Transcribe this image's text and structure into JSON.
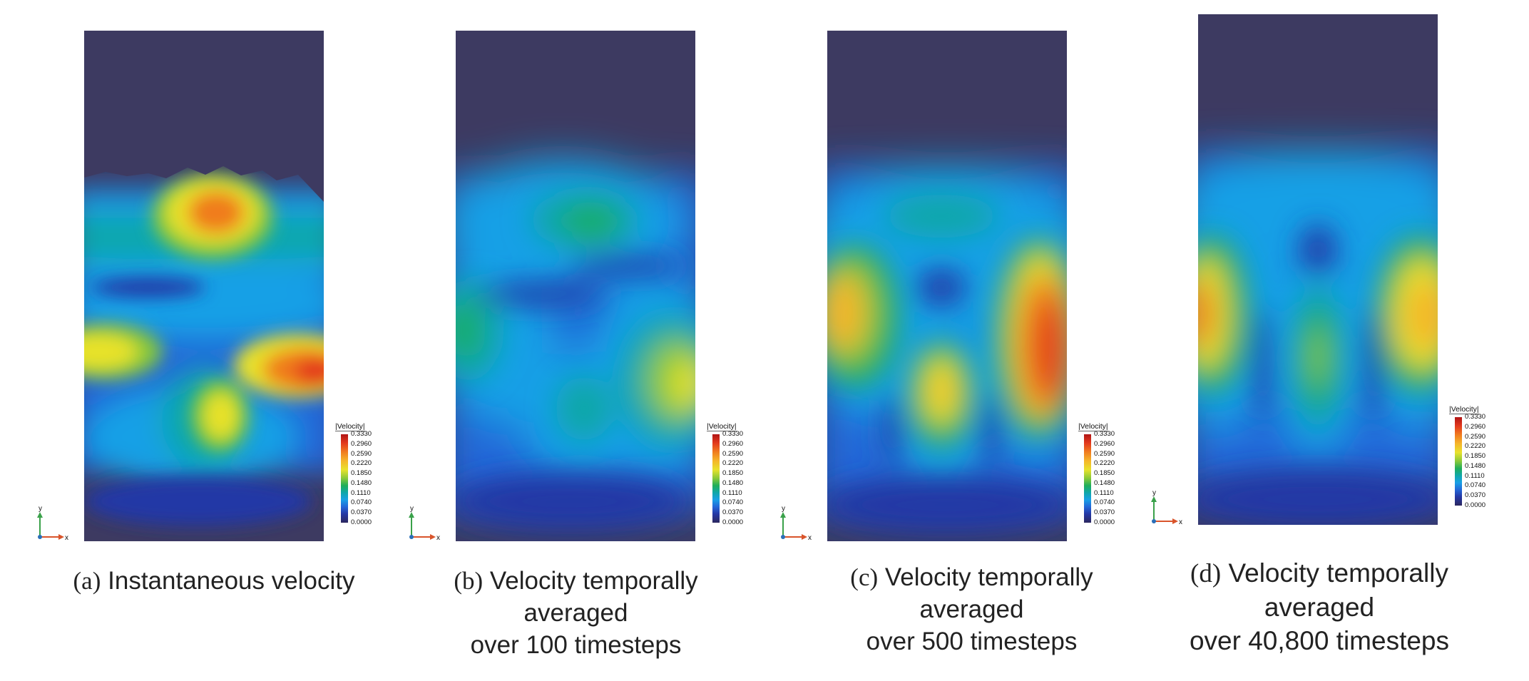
{
  "legend": {
    "title": "|Velocity|",
    "ticks": [
      "0.3330",
      "0.2960",
      "0.2590",
      "0.2220",
      "0.1850",
      "0.1480",
      "0.1110",
      "0.0740",
      "0.0370",
      "0.0000"
    ]
  },
  "axes": {
    "y": "y",
    "x": "x"
  },
  "panels": [
    {
      "letter": "(a)",
      "line1": "Instantaneous velocity",
      "line2": "",
      "line3": ""
    },
    {
      "letter": "(b)",
      "line1": "Velocity temporally",
      "line2": "averaged",
      "line3": "over 100 timesteps"
    },
    {
      "letter": "(c)",
      "line1": "Velocity temporally",
      "line2": "averaged",
      "line3": "over 500 timesteps"
    },
    {
      "letter": "(d)",
      "line1": "Velocity temporally",
      "line2": "averaged",
      "line3": "over 40,800 timesteps"
    }
  ],
  "colors": {
    "background_low": "#3d3a61",
    "scale": [
      "#2c275f",
      "#2438a6",
      "#2368d8",
      "#18a0e6",
      "#10a7a9",
      "#1fae5a",
      "#86c83a",
      "#e8e22c",
      "#f5b52a",
      "#f07c1f",
      "#e33a1e",
      "#b11414"
    ]
  }
}
